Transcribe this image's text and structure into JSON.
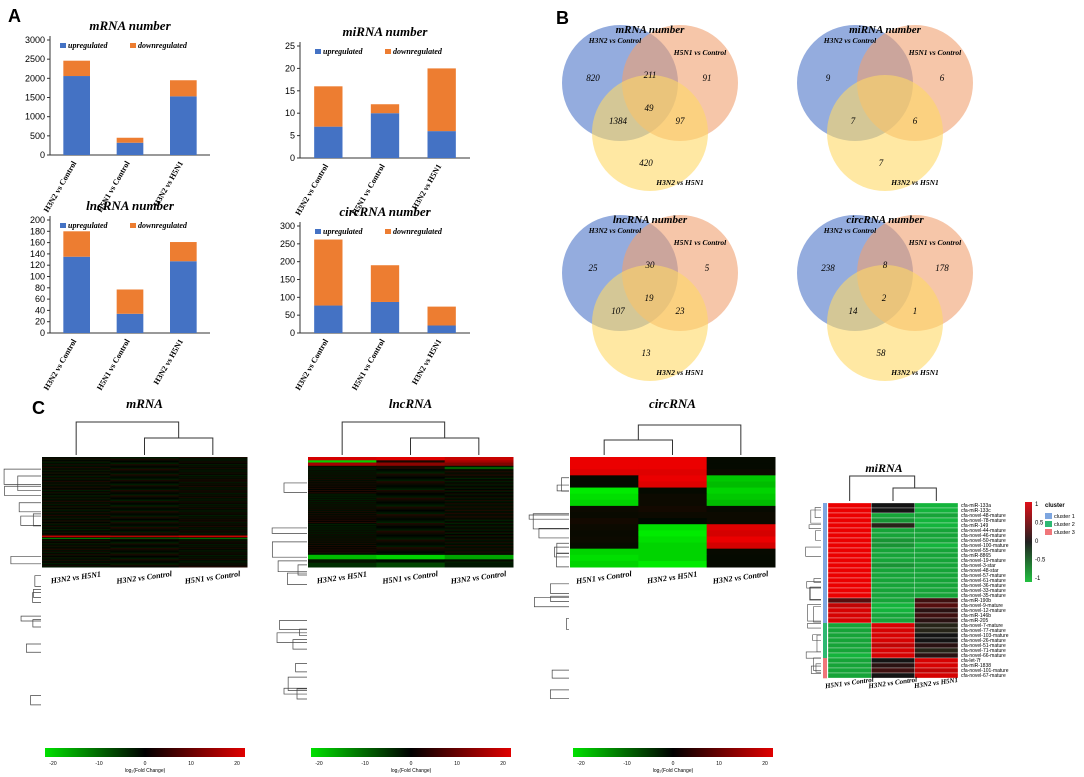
{
  "panels": {
    "A": "A",
    "B": "B",
    "C": "C"
  },
  "legend_up": "upregulated",
  "legend_down": "downregulated",
  "colors": {
    "up": "#4472C4",
    "down": "#ED7D31",
    "venn1": "#5B7FCC",
    "venn2": "#F0A070",
    "venn3": "#FFD966"
  },
  "chart_data": [
    {
      "type": "bar",
      "title": "mRNA number",
      "categories": [
        "H3N2 vs Control",
        "H5N1 vs Control",
        "H3N2 vs H5N1"
      ],
      "series": [
        {
          "name": "upregulated",
          "values": [
            2060,
            320,
            1530
          ]
        },
        {
          "name": "downregulated",
          "values": [
            400,
            130,
            420
          ]
        }
      ],
      "ylim": [
        0,
        3000
      ],
      "yticks": [
        0,
        500,
        1000,
        1500,
        2000,
        2500,
        3000
      ]
    },
    {
      "type": "bar",
      "title": "miRNA number",
      "categories": [
        "H3N2 vs Control",
        "H5N1 vs Control",
        "H3N2 vs H5N1"
      ],
      "series": [
        {
          "name": "upregulated",
          "values": [
            7,
            10,
            6
          ]
        },
        {
          "name": "downregulated",
          "values": [
            9,
            2,
            14
          ]
        }
      ],
      "ylim": [
        0,
        25
      ],
      "yticks": [
        0,
        5,
        10,
        15,
        20,
        25
      ]
    },
    {
      "type": "bar",
      "title": "lncRNA number",
      "categories": [
        "H3N2 vs Control",
        "H5N1 vs Control",
        "H3N2 vs H5N1"
      ],
      "series": [
        {
          "name": "upregulated",
          "values": [
            135,
            34,
            127
          ]
        },
        {
          "name": "downregulated",
          "values": [
            45,
            43,
            34
          ]
        }
      ],
      "ylim": [
        0,
        200
      ],
      "yticks": [
        0,
        20,
        40,
        60,
        80,
        100,
        120,
        140,
        160,
        180,
        200
      ]
    },
    {
      "type": "bar",
      "title": "circRNA number",
      "categories": [
        "H3N2 vs Control",
        "H5N1 vs Control",
        "H3N2 vs H5N1"
      ],
      "series": [
        {
          "name": "upregulated",
          "values": [
            77,
            87,
            21
          ]
        },
        {
          "name": "downregulated",
          "values": [
            185,
            103,
            53
          ]
        }
      ],
      "ylim": [
        0,
        300
      ],
      "yticks": [
        0,
        50,
        100,
        150,
        200,
        250,
        300
      ]
    }
  ],
  "venns": [
    {
      "title": "mRNA number",
      "labels": [
        "H3N2 vs Control",
        "H5N1 vs Control",
        "H3N2 vs H5N1"
      ],
      "values": [
        "820",
        "91",
        "420",
        "211",
        "1384",
        "97",
        "49"
      ]
    },
    {
      "title": "miRNA number",
      "labels": [
        "H3N2 vs Control",
        "H5N1 vs Control",
        "H3N2 vs H5N1"
      ],
      "values": [
        "9",
        "6",
        "7",
        "",
        "7",
        "6",
        ""
      ]
    },
    {
      "title": "lncRNA number",
      "labels": [
        "H3N2 vs Control",
        "H5N1 vs Control",
        "H3N2 vs H5N1"
      ],
      "values": [
        "25",
        "5",
        "13",
        "30",
        "107",
        "23",
        "19"
      ]
    },
    {
      "title": "circRNA number",
      "labels": [
        "H3N2 vs Control",
        "H5N1 vs Control",
        "H3N2 vs H5N1"
      ],
      "values": [
        "238",
        "178",
        "58",
        "8",
        "14",
        "1",
        "2"
      ]
    }
  ],
  "heatmaps": [
    {
      "title": "mRNA",
      "columns": [
        "H3N2 vs H5N1",
        "H3N2 vs Control",
        "H5N1 vs Control"
      ],
      "scale_ticks": [
        "-20",
        "-10",
        "0",
        "10",
        "20"
      ],
      "scale_label": "log₂(Fold Change)"
    },
    {
      "title": "lncRNA",
      "columns": [
        "H3N2 vs H5N1",
        "H5N1 vs Control",
        "H3N2 vs Control"
      ],
      "scale_ticks": [
        "-20",
        "-10",
        "0",
        "10",
        "20"
      ],
      "scale_label": "log₂(Fold Change)"
    },
    {
      "title": "circRNA",
      "columns": [
        "H5N1 vs Control",
        "H3N2 vs H5N1",
        "H3N2 vs Control"
      ],
      "scale_ticks": [
        "-20",
        "-10",
        "0",
        "10",
        "20"
      ],
      "scale_label": "log₂(Fold Change)"
    }
  ],
  "mirna_heatmap": {
    "title": "miRNA",
    "columns": [
      "H5N1 vs Control",
      "H3N2 vs Control",
      "H3N2 vs H5N1"
    ],
    "rows": [
      "cfa-miR-133a",
      "cfa-miR-133c",
      "cfa-novel-48-mature",
      "cfa-novel-78-mature",
      "cfa-miR-149",
      "cfa-novel-44-mature",
      "cfa-novel-46-mature",
      "cfa-novel-50-mature",
      "cfa-novel-100-mature",
      "cfa-novel-55-mature",
      "cfa-miR-8865",
      "cfa-novel-19-mature",
      "cfa-novel-3-star",
      "cfa-novel-48-star",
      "cfa-novel-57-mature",
      "cfa-novel-61-mature",
      "cfa-novel-36-mature",
      "cfa-novel-33-mature",
      "cfa-novel-35-mature",
      "cfa-miR-190b",
      "cfa-novel-9-mature",
      "cfa-novel-12-mature",
      "cfa-miR-146b",
      "cfa-miR-205",
      "cfa-novel-7-mature",
      "cfa-novel-77-mature",
      "cfa-novel-103-mature",
      "cfa-novel-26-mature",
      "cfa-novel-51-mature",
      "cfa-novel-71-mature",
      "cfa-novel-66-mature",
      "cfa-let-7f",
      "cfa-miR-1838",
      "cfa-novel-101-mature",
      "cfa-novel-67-mature"
    ],
    "clusters": [
      1,
      1,
      1,
      1,
      1,
      1,
      1,
      1,
      1,
      1,
      1,
      1,
      1,
      1,
      1,
      1,
      1,
      1,
      1,
      1,
      1,
      1,
      1,
      1,
      2,
      2,
      2,
      2,
      2,
      2,
      2,
      3,
      3,
      3,
      3
    ],
    "values": [
      [
        1,
        0,
        -1
      ],
      [
        1,
        0,
        -1
      ],
      [
        1,
        -0.9,
        -0.9
      ],
      [
        1,
        -0.8,
        -1
      ],
      [
        1,
        -0.1,
        -1
      ],
      [
        1,
        -0.9,
        -0.9
      ],
      [
        1,
        -0.9,
        -0.9
      ],
      [
        1,
        -0.8,
        -0.9
      ],
      [
        1,
        -0.8,
        -1
      ],
      [
        1,
        -0.9,
        -0.9
      ],
      [
        1,
        -0.9,
        -0.9
      ],
      [
        1,
        -0.9,
        -0.9
      ],
      [
        1,
        -0.8,
        -0.9
      ],
      [
        1,
        -0.9,
        -0.9
      ],
      [
        1,
        -0.9,
        -0.9
      ],
      [
        1,
        -0.9,
        -0.9
      ],
      [
        1,
        -0.9,
        -0.9
      ],
      [
        1,
        -0.9,
        -0.9
      ],
      [
        1,
        -0.9,
        -0.9
      ],
      [
        0.3,
        -0.9,
        0.2
      ],
      [
        0.8,
        -1,
        0.3
      ],
      [
        0.9,
        -1,
        0.1
      ],
      [
        0.9,
        -0.9,
        0.2
      ],
      [
        0.9,
        -0.9,
        0.1
      ],
      [
        -0.9,
        0.9,
        -0.1
      ],
      [
        -0.9,
        0.9,
        -0.1
      ],
      [
        -0.9,
        0.9,
        0
      ],
      [
        -0.9,
        0.9,
        0
      ],
      [
        -0.9,
        0.8,
        0.1
      ],
      [
        -0.9,
        0.9,
        -0.1
      ],
      [
        -1,
        0.9,
        0.1
      ],
      [
        -0.9,
        0,
        0.9
      ],
      [
        -0.9,
        0.1,
        0.9
      ],
      [
        -0.9,
        0.2,
        0.8
      ],
      [
        -0.9,
        0,
        0.9
      ]
    ],
    "legend_ticks": [
      "1",
      "0.5",
      "0",
      "-0.5",
      "-1"
    ],
    "cluster_title": "cluster",
    "cluster_labels": [
      "cluster 1",
      "cluster 2",
      "cluster 3"
    ],
    "cluster_colors": [
      "#7EA6E0",
      "#2EB872",
      "#F0767A"
    ]
  }
}
